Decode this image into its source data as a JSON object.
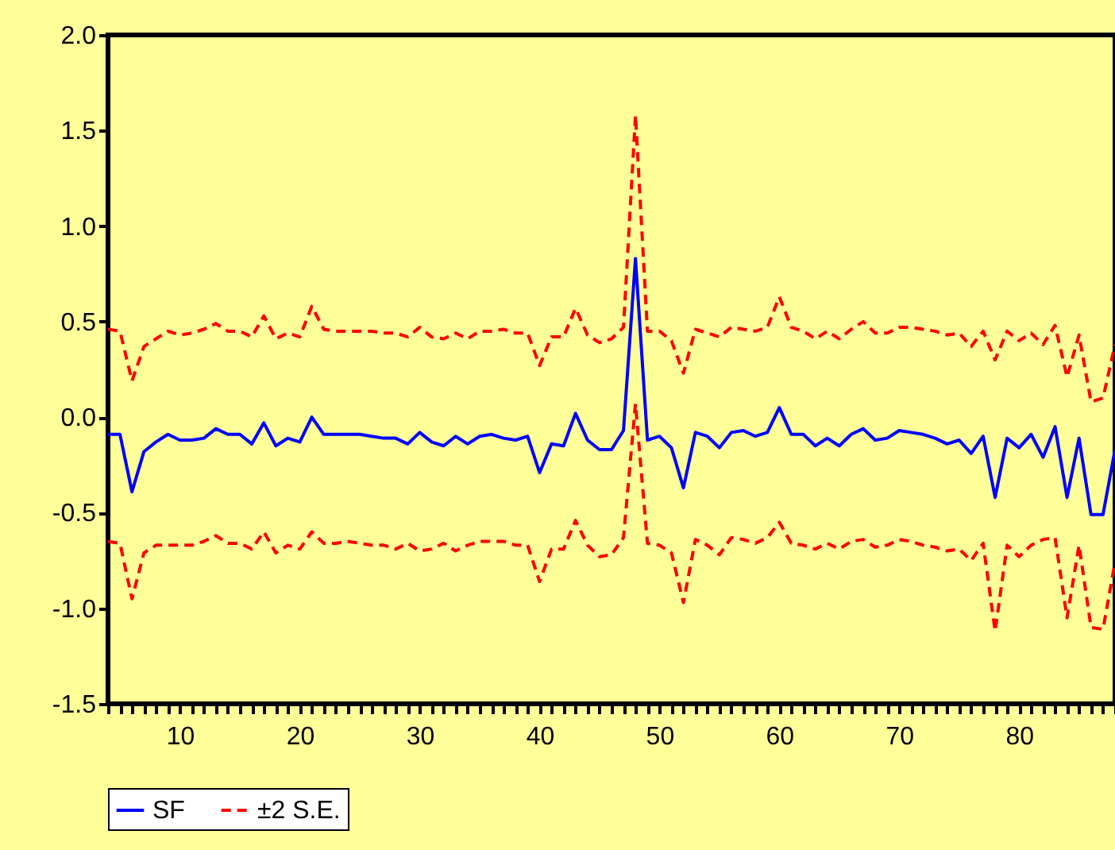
{
  "chart_data": {
    "type": "line",
    "x": [
      4,
      5,
      6,
      7,
      8,
      9,
      10,
      11,
      12,
      13,
      14,
      15,
      16,
      17,
      18,
      19,
      20,
      21,
      22,
      23,
      24,
      25,
      26,
      27,
      28,
      29,
      30,
      31,
      32,
      33,
      34,
      35,
      36,
      37,
      38,
      39,
      40,
      41,
      42,
      43,
      44,
      45,
      46,
      47,
      48,
      49,
      50,
      51,
      52,
      53,
      54,
      55,
      56,
      57,
      58,
      59,
      60,
      61,
      62,
      63,
      64,
      65,
      66,
      67,
      68,
      69,
      70,
      71,
      72,
      73,
      74,
      75,
      76,
      77,
      78,
      79,
      80,
      81,
      82,
      83,
      84,
      85,
      86,
      87,
      88
    ],
    "series": [
      {
        "name": "SF",
        "color": "#0000ff",
        "line_style": "solid",
        "values": [
          -0.09,
          -0.09,
          -0.39,
          -0.18,
          -0.13,
          -0.09,
          -0.12,
          -0.12,
          -0.11,
          -0.06,
          -0.09,
          -0.09,
          -0.14,
          -0.03,
          -0.15,
          -0.11,
          -0.13,
          0.0,
          -0.09,
          -0.09,
          -0.09,
          -0.09,
          -0.1,
          -0.11,
          -0.11,
          -0.14,
          -0.08,
          -0.13,
          -0.15,
          -0.1,
          -0.14,
          -0.1,
          -0.09,
          -0.11,
          -0.12,
          -0.1,
          -0.29,
          -0.14,
          -0.15,
          0.02,
          -0.12,
          -0.17,
          -0.17,
          -0.07,
          0.83,
          -0.12,
          -0.1,
          -0.16,
          -0.37,
          -0.08,
          -0.1,
          -0.16,
          -0.08,
          -0.07,
          -0.1,
          -0.08,
          0.05,
          -0.09,
          -0.09,
          -0.15,
          -0.11,
          -0.15,
          -0.09,
          -0.06,
          -0.12,
          -0.11,
          -0.07,
          -0.08,
          -0.09,
          -0.11,
          -0.14,
          -0.12,
          -0.19,
          -0.1,
          -0.42,
          -0.11,
          -0.16,
          -0.09,
          -0.21,
          -0.05,
          -0.42,
          -0.11,
          -0.51,
          -0.51,
          -0.17
        ]
      },
      {
        "name": "±2 S.E.",
        "color": "#ff0000",
        "line_style": "dashed",
        "values": [
          0.46,
          0.45,
          0.19,
          0.37,
          0.41,
          0.45,
          0.43,
          0.44,
          0.46,
          0.49,
          0.45,
          0.45,
          0.42,
          0.53,
          0.41,
          0.44,
          0.42,
          0.58,
          0.46,
          0.45,
          0.45,
          0.45,
          0.45,
          0.44,
          0.44,
          0.42,
          0.47,
          0.42,
          0.41,
          0.44,
          0.41,
          0.45,
          0.45,
          0.46,
          0.44,
          0.44,
          0.27,
          0.42,
          0.42,
          0.57,
          0.43,
          0.39,
          0.41,
          0.47,
          1.58,
          0.45,
          0.45,
          0.4,
          0.23,
          0.46,
          0.44,
          0.42,
          0.47,
          0.46,
          0.45,
          0.47,
          0.63,
          0.47,
          0.45,
          0.41,
          0.45,
          0.41,
          0.46,
          0.5,
          0.44,
          0.44,
          0.47,
          0.47,
          0.46,
          0.45,
          0.43,
          0.44,
          0.37,
          0.45,
          0.3,
          0.45,
          0.4,
          0.44,
          0.38,
          0.48,
          0.21,
          0.43,
          0.08,
          0.1,
          0.38
        ]
      },
      {
        "color": "#ff0000",
        "line_style": "dashed",
        "values": [
          -0.65,
          -0.66,
          -0.95,
          -0.71,
          -0.67,
          -0.67,
          -0.67,
          -0.67,
          -0.65,
          -0.62,
          -0.66,
          -0.66,
          -0.69,
          -0.6,
          -0.71,
          -0.67,
          -0.69,
          -0.6,
          -0.66,
          -0.66,
          -0.65,
          -0.66,
          -0.67,
          -0.67,
          -0.69,
          -0.66,
          -0.7,
          -0.69,
          -0.66,
          -0.7,
          -0.67,
          -0.65,
          -0.65,
          -0.65,
          -0.67,
          -0.67,
          -0.86,
          -0.69,
          -0.69,
          -0.54,
          -0.67,
          -0.73,
          -0.72,
          -0.63,
          0.07,
          -0.66,
          -0.67,
          -0.71,
          -0.97,
          -0.64,
          -0.67,
          -0.72,
          -0.63,
          -0.64,
          -0.66,
          -0.63,
          -0.55,
          -0.66,
          -0.67,
          -0.69,
          -0.66,
          -0.69,
          -0.65,
          -0.64,
          -0.68,
          -0.67,
          -0.64,
          -0.65,
          -0.67,
          -0.68,
          -0.7,
          -0.69,
          -0.75,
          -0.66,
          -1.12,
          -0.67,
          -0.73,
          -0.67,
          -0.64,
          -0.63,
          -1.05,
          -0.67,
          -1.1,
          -1.11,
          -0.76
        ]
      }
    ],
    "xlim": [
      4,
      88
    ],
    "xticks": [
      {
        "value": 4,
        "label": null
      },
      {
        "value": 5,
        "label": null
      },
      {
        "value": 6,
        "label": null
      },
      {
        "value": 7,
        "label": null
      },
      {
        "value": 8,
        "label": null
      },
      {
        "value": 9,
        "label": null
      },
      10,
      {
        "value": 11,
        "label": null
      },
      {
        "value": 12,
        "label": null
      },
      {
        "value": 13,
        "label": null
      },
      {
        "value": 14,
        "label": null
      },
      {
        "value": 15,
        "label": null
      },
      {
        "value": 16,
        "label": null
      },
      {
        "value": 17,
        "label": null
      },
      {
        "value": 18,
        "label": null
      },
      {
        "value": 19,
        "label": null
      },
      20,
      {
        "value": 21,
        "label": null
      },
      {
        "value": 22,
        "label": null
      },
      {
        "value": 23,
        "label": null
      },
      {
        "value": 24,
        "label": null
      },
      {
        "value": 25,
        "label": null
      },
      {
        "value": 26,
        "label": null
      },
      {
        "value": 27,
        "label": null
      },
      {
        "value": 28,
        "label": null
      },
      {
        "value": 29,
        "label": null
      },
      30,
      {
        "value": 31,
        "label": null
      },
      {
        "value": 32,
        "label": null
      },
      {
        "value": 33,
        "label": null
      },
      {
        "value": 34,
        "label": null
      },
      {
        "value": 35,
        "label": null
      },
      {
        "value": 36,
        "label": null
      },
      {
        "value": 37,
        "label": null
      },
      {
        "value": 38,
        "label": null
      },
      {
        "value": 39,
        "label": null
      },
      40,
      {
        "value": 41,
        "label": null
      },
      {
        "value": 42,
        "label": null
      },
      {
        "value": 43,
        "label": null
      },
      {
        "value": 44,
        "label": null
      },
      {
        "value": 45,
        "label": null
      },
      {
        "value": 46,
        "label": null
      },
      {
        "value": 47,
        "label": null
      },
      {
        "value": 48,
        "label": null
      },
      {
        "value": 49,
        "label": null
      },
      50,
      {
        "value": 51,
        "label": null
      },
      {
        "value": 52,
        "label": null
      },
      {
        "value": 53,
        "label": null
      },
      {
        "value": 54,
        "label": null
      },
      {
        "value": 55,
        "label": null
      },
      {
        "value": 56,
        "label": null
      },
      {
        "value": 57,
        "label": null
      },
      {
        "value": 58,
        "label": null
      },
      {
        "value": 59,
        "label": null
      },
      60,
      {
        "value": 61,
        "label": null
      },
      {
        "value": 62,
        "label": null
      },
      {
        "value": 63,
        "label": null
      },
      {
        "value": 64,
        "label": null
      },
      {
        "value": 65,
        "label": null
      },
      {
        "value": 66,
        "label": null
      },
      {
        "value": 67,
        "label": null
      },
      {
        "value": 68,
        "label": null
      },
      {
        "value": 69,
        "label": null
      },
      70,
      {
        "value": 71,
        "label": null
      },
      {
        "value": 72,
        "label": null
      },
      {
        "value": 73,
        "label": null
      },
      {
        "value": 74,
        "label": null
      },
      {
        "value": 75,
        "label": null
      },
      {
        "value": 76,
        "label": null
      },
      {
        "value": 77,
        "label": null
      },
      {
        "value": 78,
        "label": null
      },
      {
        "value": 79,
        "label": null
      },
      80,
      {
        "value": 81,
        "label": null
      },
      {
        "value": 82,
        "label": null
      },
      {
        "value": 83,
        "label": null
      },
      {
        "value": 84,
        "label": null
      },
      {
        "value": 85,
        "label": null
      },
      {
        "value": 86,
        "label": null
      },
      {
        "value": 87,
        "label": null
      },
      {
        "value": 88,
        "label": null
      }
    ],
    "ylim": [
      -1.5,
      2.0
    ],
    "yticks": [
      {
        "value": -1.5,
        "label": "-1.5"
      },
      {
        "value": -1.0,
        "label": "-1.0"
      },
      {
        "value": -0.5,
        "label": "-0.5"
      },
      {
        "value": 0,
        "label": "0.0"
      },
      {
        "value": 0.5,
        "label": "0.5"
      },
      {
        "value": 1.0,
        "label": "1.0"
      },
      {
        "value": 1.5,
        "label": "1.5"
      },
      {
        "value": 2.0,
        "label": "2.0"
      }
    ],
    "grid": false,
    "legend": "bottom",
    "marker": "none"
  }
}
